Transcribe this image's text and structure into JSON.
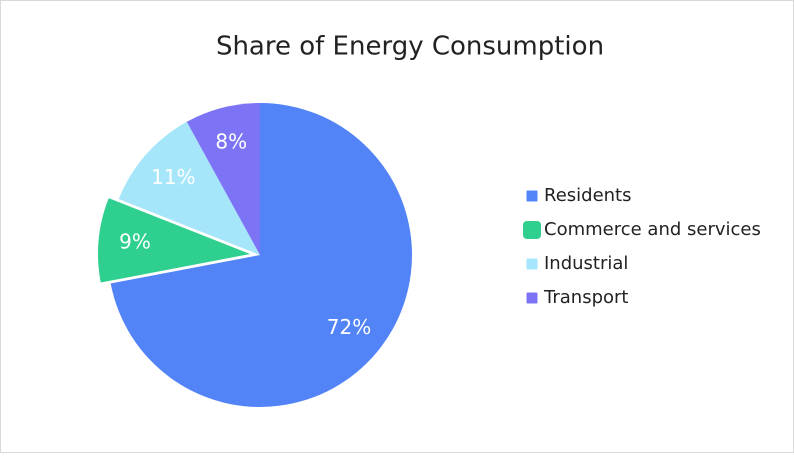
{
  "chart_data": {
    "type": "pie",
    "title": "Share of Energy Consumption",
    "categories": [
      "Residents",
      "Commerce and services",
      "Industrial",
      "Transport"
    ],
    "values": [
      72,
      9,
      11,
      8
    ],
    "value_labels": [
      "72%",
      "9%",
      "11%",
      "8%"
    ],
    "colors": [
      "#5283f7",
      "#2fd08f",
      "#a6e6fb",
      "#7c74f4"
    ],
    "explode": [
      false,
      true,
      false,
      false
    ],
    "legend": "right"
  }
}
